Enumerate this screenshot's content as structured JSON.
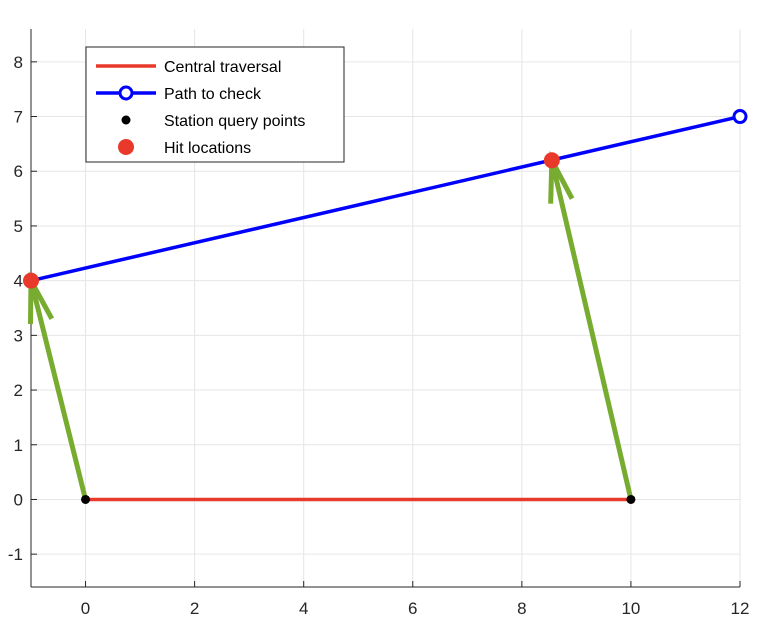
{
  "chart_data": {
    "type": "line",
    "title": "",
    "xlabel": "",
    "ylabel": "",
    "xlim": [
      -1,
      12
    ],
    "ylim": [
      -1.6,
      8.6
    ],
    "xticks": [
      0,
      2,
      4,
      6,
      8,
      10,
      12
    ],
    "yticks": [
      -1,
      0,
      1,
      2,
      3,
      4,
      5,
      6,
      7,
      8
    ],
    "grid": true,
    "legend_position": "top-left",
    "series": [
      {
        "name": "Central traversal",
        "kind": "line",
        "color": "#e8392a",
        "x": [
          0,
          10
        ],
        "y": [
          0,
          0
        ]
      },
      {
        "name": "Path to check",
        "kind": "line-with-circle-endpoints",
        "color": "#0000ff",
        "x": [
          -1,
          12
        ],
        "y": [
          4,
          7
        ]
      },
      {
        "name": "Station query points",
        "kind": "scatter",
        "color": "#000000",
        "x": [
          0,
          10
        ],
        "y": [
          0,
          0
        ]
      },
      {
        "name": "Hit locations",
        "kind": "scatter",
        "color": "#e8392a",
        "x": [
          -1,
          8.55
        ],
        "y": [
          4,
          6.2
        ]
      }
    ],
    "arrows": [
      {
        "from": [
          0,
          0
        ],
        "to": [
          -1,
          4
        ],
        "color": "#77ac30"
      },
      {
        "from": [
          10,
          0
        ],
        "to": [
          8.55,
          6.2
        ],
        "color": "#77ac30"
      }
    ]
  }
}
